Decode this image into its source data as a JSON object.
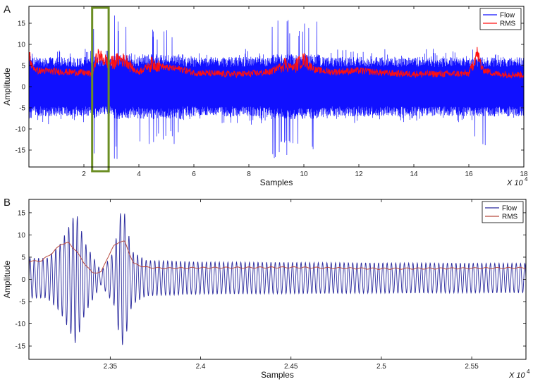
{
  "chart_data": [
    {
      "panel": "A",
      "type": "line",
      "xlabel": "Samples",
      "ylabel": "Amplitude",
      "x_multiplier": "X 10",
      "x_multiplier_exp": "4",
      "xlim": [
        0,
        18
      ],
      "ylim": [
        -19,
        19
      ],
      "xticks": [
        2,
        4,
        6,
        8,
        10,
        12,
        14,
        16,
        18
      ],
      "xtick_labels": [
        "2",
        "4",
        "6",
        "8",
        "10",
        "12",
        "14",
        "16",
        "18"
      ],
      "yticks": [
        -15,
        -10,
        -5,
        0,
        5,
        10,
        15
      ],
      "ytick_labels": [
        "-15",
        "-10",
        "-5",
        "0",
        "5",
        "10",
        "15"
      ],
      "legend": {
        "placement": "top-right",
        "entries": [
          "Flow",
          "RMS"
        ]
      },
      "highlight": {
        "x_range": [
          2.3,
          2.9
        ],
        "color": "#6b8e23"
      },
      "series": [
        {
          "name": "Flow",
          "color": "#1010ff",
          "note": "dense oscillation; envelope (upper/lower) per segment in data units",
          "envelope": [
            {
              "x": [
                0.0,
                0.1
              ],
              "upper": 18,
              "lower": -18
            },
            {
              "x": [
                0.1,
                2.3
              ],
              "upper": 9,
              "lower": -9
            },
            {
              "x": [
                2.3,
                2.5
              ],
              "upper": 17,
              "lower": -17
            },
            {
              "x": [
                2.5,
                3.1
              ],
              "upper": 10,
              "lower": -10
            },
            {
              "x": [
                3.1,
                3.7
              ],
              "upper": 17,
              "lower": -18
            },
            {
              "x": [
                3.7,
                4.0
              ],
              "upper": 8,
              "lower": -8
            },
            {
              "x": [
                4.0,
                5.6
              ],
              "upper": 14,
              "lower": -14
            },
            {
              "x": [
                5.6,
                7.0
              ],
              "upper": 8,
              "lower": -8
            },
            {
              "x": [
                7.0,
                8.8
              ],
              "upper": 9,
              "lower": -9
            },
            {
              "x": [
                8.8,
                10.6
              ],
              "upper": 16,
              "lower": -17
            },
            {
              "x": [
                10.6,
                16.2
              ],
              "upper": 9,
              "lower": -9
            },
            {
              "x": [
                16.2,
                16.6
              ],
              "upper": 12,
              "lower": -14
            },
            {
              "x": [
                16.6,
                18.0
              ],
              "upper": 8,
              "lower": -8
            }
          ]
        },
        {
          "name": "RMS",
          "color": "#ff1010",
          "x": [
            0.0,
            0.1,
            0.3,
            1.0,
            2.0,
            2.3,
            2.5,
            2.7,
            3.0,
            3.3,
            3.6,
            3.8,
            4.0,
            4.5,
            5.0,
            5.5,
            6.0,
            7.0,
            8.0,
            8.8,
            9.3,
            9.6,
            10.0,
            10.4,
            11.0,
            12.0,
            13.0,
            14.0,
            15.0,
            16.0,
            16.3,
            16.5,
            17.0,
            18.0
          ],
          "y": [
            8.0,
            5.0,
            3.8,
            3.6,
            3.3,
            3.0,
            7.5,
            6.5,
            5.5,
            6.5,
            6.0,
            4.0,
            3.5,
            5.5,
            4.5,
            4.2,
            3.3,
            3.0,
            3.0,
            3.5,
            5.5,
            4.5,
            6.5,
            4.0,
            3.5,
            3.8,
            3.2,
            3.0,
            3.0,
            3.1,
            8.0,
            4.0,
            3.0,
            2.8
          ]
        }
      ]
    },
    {
      "panel": "B",
      "type": "line",
      "xlabel": "Samples",
      "ylabel": "Amplitude",
      "x_multiplier": "X 10",
      "x_multiplier_exp": "4",
      "xlim": [
        2.305,
        2.58
      ],
      "ylim": [
        -18,
        18
      ],
      "xticks": [
        2.35,
        2.4,
        2.45,
        2.5,
        2.55
      ],
      "xtick_labels": [
        "2.35",
        "2.4",
        "2.45",
        "2.5",
        "2.55"
      ],
      "yticks": [
        -15,
        -10,
        -5,
        0,
        5,
        10,
        15
      ],
      "ytick_labels": [
        "-15",
        "-10",
        "-5",
        "0",
        "5",
        "10",
        "15"
      ],
      "legend": {
        "placement": "top-right",
        "entries": [
          "Flow",
          "RMS"
        ]
      },
      "series": [
        {
          "name": "Flow",
          "color": "#2b2b9e",
          "note": "oscillation ~4.2 cycles per 0.01; amplitude envelope in data units",
          "cycles_per_unit": 420,
          "offset": 0.3,
          "envelope_x": [
            2.305,
            2.315,
            2.322,
            2.327,
            2.331,
            2.336,
            2.345,
            2.352,
            2.356,
            2.358,
            2.362,
            2.37,
            2.4,
            2.5,
            2.58
          ],
          "envelope_amp": [
            4.5,
            4.5,
            7.5,
            11.5,
            15.0,
            8.0,
            1.5,
            6.0,
            15.5,
            14.5,
            6.0,
            4.0,
            3.6,
            3.4,
            3.3
          ]
        },
        {
          "name": "RMS",
          "color": "#b84a3e",
          "x": [
            2.305,
            2.312,
            2.318,
            2.323,
            2.327,
            2.331,
            2.335,
            2.34,
            2.345,
            2.348,
            2.352,
            2.355,
            2.358,
            2.36,
            2.363,
            2.37,
            2.38,
            2.4,
            2.45,
            2.5,
            2.55,
            2.58
          ],
          "y": [
            4.0,
            4.2,
            6.0,
            8.0,
            8.2,
            6.5,
            4.0,
            1.5,
            1.6,
            4.5,
            7.5,
            8.5,
            8.5,
            6.5,
            3.5,
            2.7,
            2.5,
            2.6,
            2.7,
            2.4,
            2.5,
            2.6
          ]
        }
      ]
    }
  ]
}
